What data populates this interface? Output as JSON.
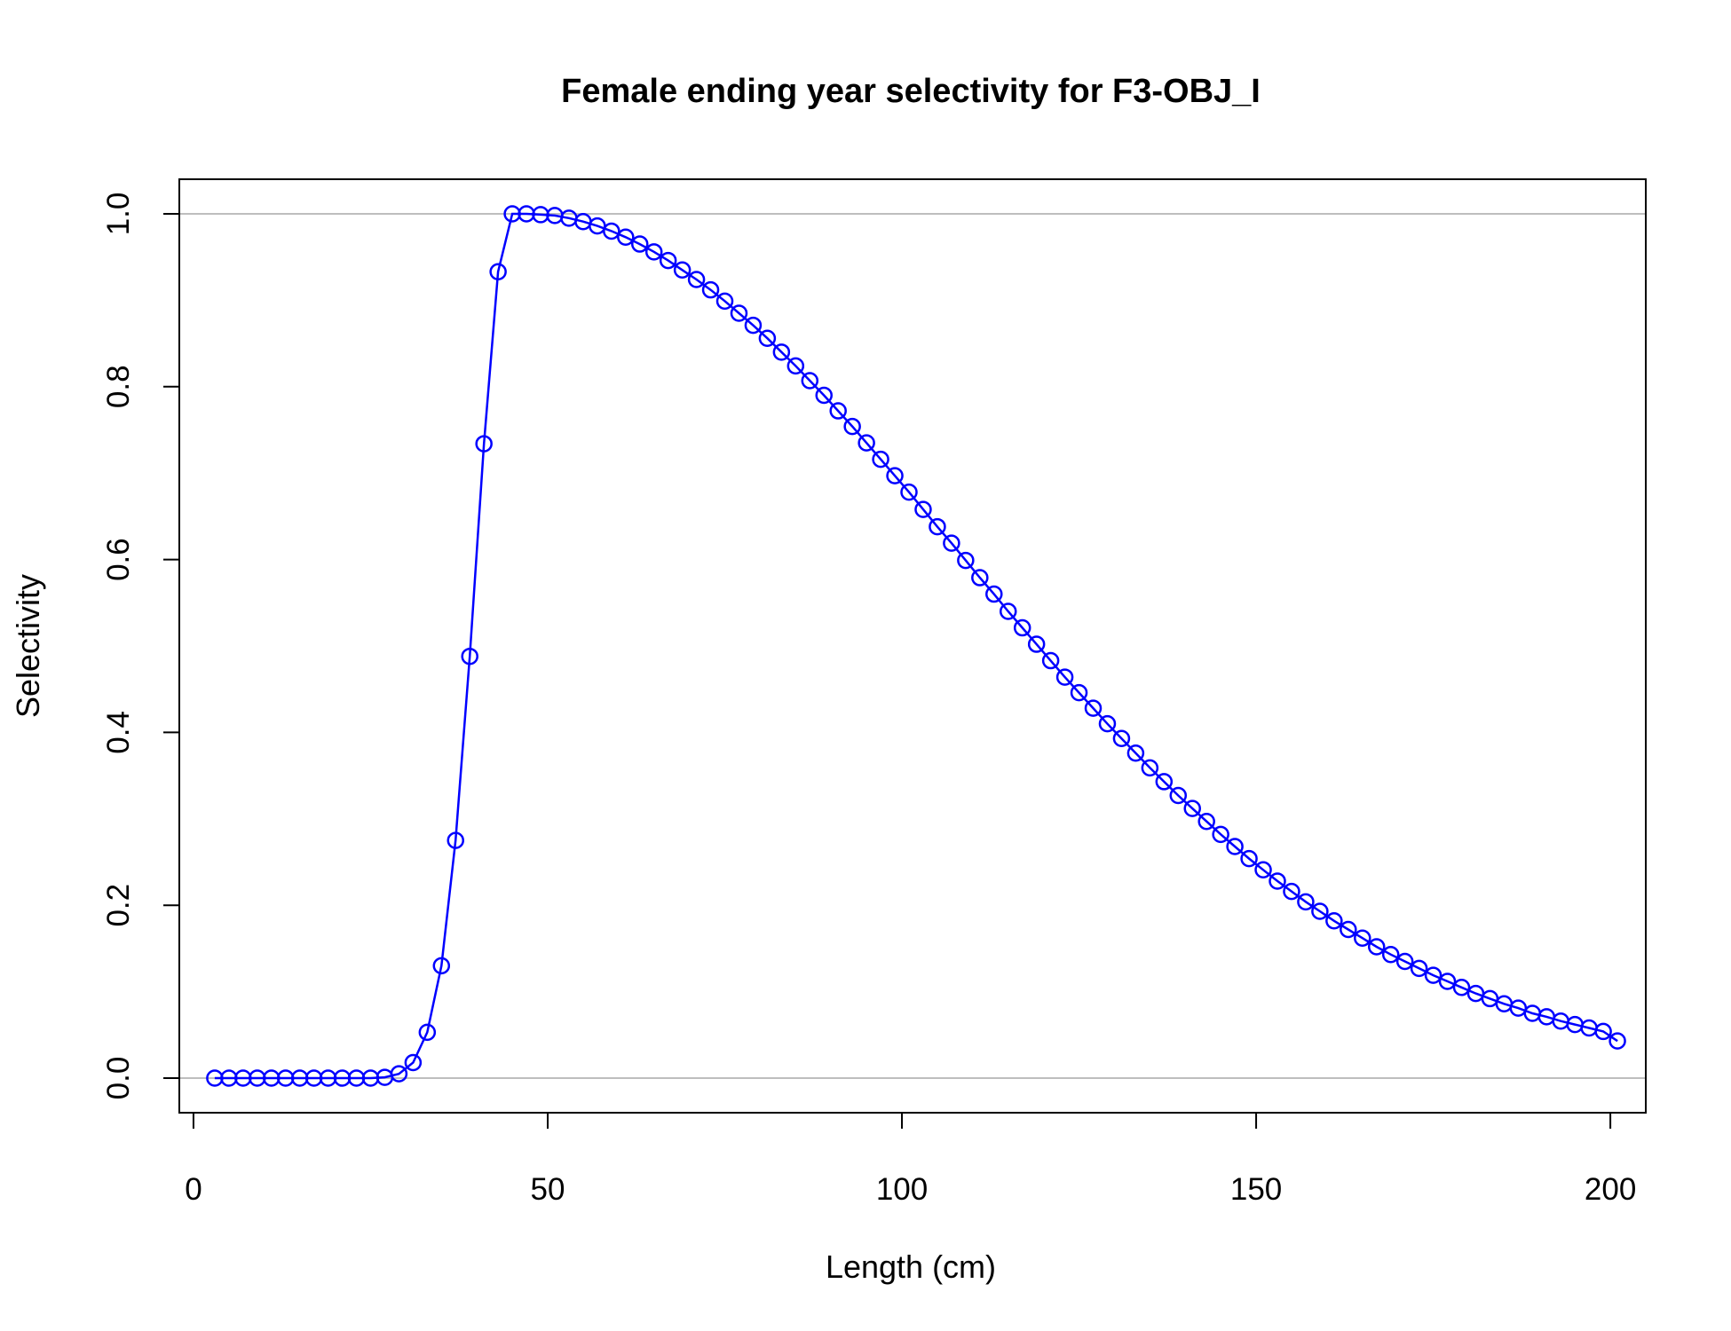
{
  "chart_data": {
    "type": "line",
    "title": "Female ending year selectivity for F3-OBJ_I",
    "xlabel": "Length (cm)",
    "ylabel": "Selectivity",
    "xlim": [
      -2,
      205
    ],
    "ylim": [
      -0.04,
      1.04
    ],
    "x_ticks": [
      0,
      50,
      100,
      150,
      200
    ],
    "y_ticks": [
      0.0,
      0.2,
      0.4,
      0.6,
      0.8,
      1.0
    ],
    "x_tick_labels": [
      "0",
      "50",
      "100",
      "150",
      "200"
    ],
    "y_tick_labels": [
      "0.0",
      "0.2",
      "0.4",
      "0.6",
      "0.8",
      "1.0"
    ],
    "reference_lines": [
      0,
      1
    ],
    "grid": false,
    "legend": false,
    "colors": {
      "series": "#0000ff",
      "reference": "#bebebe",
      "axes": "#000000"
    },
    "series": [
      {
        "marker": "open-circle",
        "x": [
          3,
          5,
          7,
          9,
          11,
          13,
          15,
          17,
          19,
          21,
          23,
          25,
          27,
          29,
          31,
          33,
          35,
          37,
          39,
          41,
          43,
          45,
          47,
          49,
          51,
          53,
          55,
          57,
          59,
          61,
          63,
          65,
          67,
          69,
          71,
          73,
          75,
          77,
          79,
          81,
          83,
          85,
          87,
          89,
          91,
          93,
          95,
          97,
          99,
          101,
          103,
          105,
          107,
          109,
          111,
          113,
          115,
          117,
          119,
          121,
          123,
          125,
          127,
          129,
          131,
          133,
          135,
          137,
          139,
          141,
          143,
          145,
          147,
          149,
          151,
          153,
          155,
          157,
          159,
          161,
          163,
          165,
          167,
          169,
          171,
          173,
          175,
          177,
          179,
          181,
          183,
          185,
          187,
          189,
          191,
          193,
          195,
          197,
          199,
          201
        ],
        "values": [
          0.0,
          0.0,
          0.0,
          0.0,
          0.0,
          0.0,
          0.0,
          0.0,
          0.0,
          0.0,
          0.0,
          0.0,
          0.001,
          0.005,
          0.018,
          0.053,
          0.13,
          0.275,
          0.488,
          0.734,
          0.933,
          1.0,
          1.0,
          0.999,
          0.998,
          0.995,
          0.991,
          0.986,
          0.98,
          0.973,
          0.965,
          0.956,
          0.946,
          0.935,
          0.924,
          0.912,
          0.899,
          0.885,
          0.871,
          0.856,
          0.84,
          0.824,
          0.807,
          0.79,
          0.772,
          0.754,
          0.735,
          0.716,
          0.697,
          0.678,
          0.658,
          0.638,
          0.619,
          0.599,
          0.579,
          0.56,
          0.54,
          0.521,
          0.502,
          0.483,
          0.464,
          0.446,
          0.428,
          0.41,
          0.393,
          0.376,
          0.359,
          0.343,
          0.327,
          0.312,
          0.297,
          0.282,
          0.268,
          0.254,
          0.241,
          0.228,
          0.216,
          0.204,
          0.193,
          0.182,
          0.172,
          0.162,
          0.152,
          0.143,
          0.135,
          0.127,
          0.119,
          0.112,
          0.105,
          0.098,
          0.092,
          0.086,
          0.081,
          0.075,
          0.071,
          0.066,
          0.062,
          0.058,
          0.054,
          0.043
        ]
      }
    ]
  }
}
